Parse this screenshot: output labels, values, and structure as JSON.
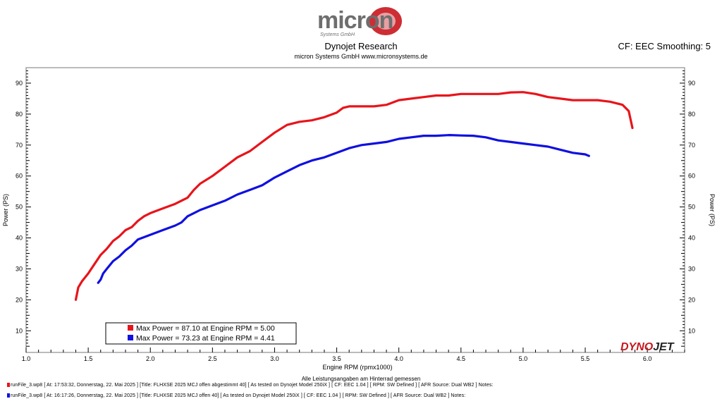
{
  "header": {
    "logo_word": "micron",
    "logo_tagline": "Systems GmbH",
    "title": "Dynojet Research",
    "subtitle": "micron Systems GmbH  www.micronsystems.de",
    "cf_label": "CF: EEC Smoothing: 5"
  },
  "brand": {
    "logo_word": "DYNOJET",
    "colors": {
      "dyno": "#c8161d",
      "jet": "#222222"
    }
  },
  "note": "Alle Leistungsangaben am Hinterrad gemessen",
  "runs": [
    {
      "label": "runFile_3.wp8 [ At:  17:53:32, Donnerstag, 22. Mai 2025 ] [Title: FLHXSE 2025 MCJ offen abgestimmt 40]  [ As tested on Dynojet Model 250iX ] [ CF: EEC 1.04 ] [ RPM: SW Defined ] [ AFR Source: Dual WB2 ] Notes:",
      "color": "#e8141b"
    },
    {
      "label": "runFile_3.wp8 [ At:  16:17:26, Donnerstag, 22. Mai 2025 ] [Title: FLHXSE 2025 MCJ offen 40]  [ As tested on Dynojet Model 250iX ] [ CF: EEC 1.04 ] [ RPM: SW Defined ] [ AFR Source: Dual WB2 ] Notes:",
      "color": "#1010e0"
    }
  ],
  "chart_data": {
    "type": "line",
    "xlabel": "Engine RPM (rpmx1000)",
    "ylabel": "Power (PS)",
    "y2label": "Power (PS)",
    "xlim": [
      1.0,
      6.3
    ],
    "ylim": [
      3,
      95
    ],
    "xticks": [
      "1.0",
      "1.5",
      "2.0",
      "2.5",
      "3.0",
      "3.5",
      "4.0",
      "4.5",
      "5.0",
      "5.5",
      "6.0"
    ],
    "yticks": [
      "10",
      "20",
      "30",
      "40",
      "50",
      "60",
      "70",
      "80",
      "90"
    ],
    "grid": false,
    "legend": [
      "Max Power = 87.10 at Engine RPM = 5.00",
      "Max Power = 73.23 at Engine RPM = 4.41"
    ],
    "legend_position": "bottom-left",
    "series": [
      {
        "color": "#e8141b",
        "x": [
          1.4,
          1.42,
          1.45,
          1.5,
          1.55,
          1.6,
          1.65,
          1.7,
          1.75,
          1.8,
          1.85,
          1.9,
          1.95,
          2.0,
          2.1,
          2.2,
          2.3,
          2.35,
          2.4,
          2.5,
          2.6,
          2.7,
          2.8,
          2.9,
          3.0,
          3.1,
          3.2,
          3.3,
          3.4,
          3.5,
          3.55,
          3.6,
          3.7,
          3.8,
          3.9,
          4.0,
          4.1,
          4.2,
          4.3,
          4.4,
          4.5,
          4.6,
          4.7,
          4.8,
          4.9,
          5.0,
          5.1,
          5.2,
          5.3,
          5.4,
          5.5,
          5.6,
          5.7,
          5.8,
          5.85,
          5.88
        ],
        "values": [
          20.0,
          24.0,
          26.0,
          28.5,
          31.5,
          34.5,
          36.5,
          39.0,
          40.5,
          42.5,
          43.5,
          45.5,
          47.0,
          48.0,
          49.5,
          51.0,
          53.0,
          55.5,
          57.5,
          60.0,
          63.0,
          66.0,
          68.0,
          71.0,
          74.0,
          76.5,
          77.5,
          78.0,
          79.0,
          80.5,
          82.0,
          82.5,
          82.5,
          82.5,
          83.0,
          84.5,
          85.0,
          85.5,
          86.0,
          86.0,
          86.5,
          86.5,
          86.5,
          86.5,
          87.0,
          87.1,
          86.5,
          85.5,
          85.0,
          84.5,
          84.5,
          84.5,
          84.0,
          83.0,
          81.0,
          75.5
        ]
      },
      {
        "color": "#1010e0",
        "x": [
          1.58,
          1.6,
          1.62,
          1.65,
          1.7,
          1.75,
          1.8,
          1.85,
          1.9,
          2.0,
          2.1,
          2.2,
          2.25,
          2.3,
          2.35,
          2.4,
          2.5,
          2.6,
          2.7,
          2.8,
          2.9,
          3.0,
          3.1,
          3.2,
          3.3,
          3.4,
          3.5,
          3.6,
          3.7,
          3.8,
          3.9,
          4.0,
          4.1,
          4.2,
          4.3,
          4.41,
          4.5,
          4.6,
          4.7,
          4.8,
          4.9,
          5.0,
          5.1,
          5.2,
          5.3,
          5.4,
          5.5,
          5.53
        ],
        "values": [
          25.5,
          26.5,
          28.5,
          30.0,
          32.5,
          34.0,
          36.0,
          37.5,
          39.5,
          41.0,
          42.5,
          44.0,
          45.0,
          47.0,
          48.0,
          49.0,
          50.5,
          52.0,
          54.0,
          55.5,
          57.0,
          59.5,
          61.5,
          63.5,
          65.0,
          66.0,
          67.5,
          69.0,
          70.0,
          70.5,
          71.0,
          72.0,
          72.5,
          73.0,
          73.0,
          73.23,
          73.1,
          73.0,
          72.5,
          71.5,
          71.0,
          70.5,
          70.0,
          69.5,
          68.5,
          67.5,
          67.0,
          66.5
        ]
      }
    ]
  }
}
